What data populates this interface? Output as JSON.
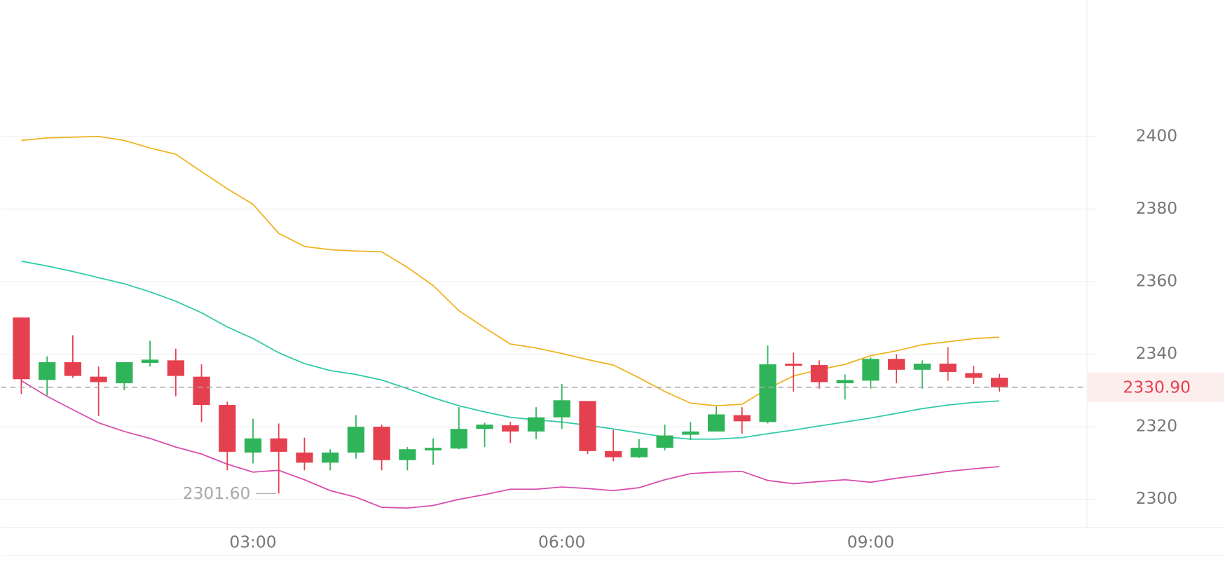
{
  "chart_data": {
    "type": "candlestick",
    "x": [
      0.75,
      1,
      1.25,
      1.5,
      1.75,
      2,
      2.25,
      2.5,
      2.75,
      3,
      3.25,
      3.5,
      3.75,
      4,
      4.25,
      4.5,
      4.75,
      5,
      5.25,
      5.5,
      5.75,
      6,
      6.25,
      6.5,
      6.75,
      7,
      7.25,
      7.5,
      7.75,
      8,
      8.25,
      8.5,
      8.75,
      9,
      9.25,
      9.5,
      9.75,
      10,
      10.25
    ],
    "open": [
      2350.1,
      2332.9,
      2337.8,
      2333.8,
      2332.0,
      2337.6,
      2338.3,
      2333.8,
      2326.0,
      2312.9,
      2316.8,
      2312.9,
      2310.1,
      2312.9,
      2320.0,
      2310.8,
      2313.5,
      2314.0,
      2319.4,
      2320.4,
      2318.7,
      2322.6,
      2327.1,
      2313.3,
      2311.6,
      2314.2,
      2317.8,
      2318.7,
      2323.2,
      2321.3,
      2337.4,
      2337.0,
      2332.0,
      2332.7,
      2338.7,
      2335.7,
      2337.4,
      2334.8,
      2333.5
    ],
    "high": [
      2350.1,
      2339.4,
      2345.2,
      2336.6,
      2337.8,
      2343.7,
      2341.5,
      2337.2,
      2326.9,
      2322.2,
      2320.9,
      2317.0,
      2313.8,
      2323.2,
      2320.6,
      2314.4,
      2316.8,
      2325.4,
      2321.1,
      2321.3,
      2325.4,
      2331.8,
      2327.1,
      2319.1,
      2316.6,
      2320.6,
      2321.3,
      2325.6,
      2325.4,
      2342.4,
      2340.4,
      2338.3,
      2334.4,
      2339.1,
      2340.0,
      2338.3,
      2341.9,
      2336.8,
      2334.6
    ],
    "low": [
      2329.0,
      2328.6,
      2333.5,
      2323.0,
      2330.1,
      2336.6,
      2328.4,
      2321.3,
      2308.0,
      2309.9,
      2301.6,
      2308.0,
      2308.0,
      2311.2,
      2308.0,
      2308.0,
      2309.5,
      2313.8,
      2314.4,
      2315.5,
      2316.6,
      2319.4,
      2312.5,
      2310.5,
      2311.4,
      2313.5,
      2316.3,
      2318.7,
      2318.1,
      2320.9,
      2329.7,
      2330.5,
      2327.5,
      2330.5,
      2332.0,
      2330.5,
      2332.7,
      2331.8,
      2329.7
    ],
    "close": [
      2333.1,
      2337.8,
      2334.0,
      2332.3,
      2337.8,
      2338.5,
      2334.0,
      2326.0,
      2313.1,
      2316.8,
      2313.1,
      2310.1,
      2312.9,
      2320.0,
      2310.8,
      2313.8,
      2314.2,
      2319.4,
      2320.6,
      2318.7,
      2322.6,
      2327.3,
      2313.3,
      2311.6,
      2314.2,
      2317.6,
      2318.7,
      2323.4,
      2321.5,
      2337.2,
      2336.8,
      2332.3,
      2332.9,
      2338.7,
      2335.7,
      2337.4,
      2335.1,
      2333.5,
      2330.9
    ],
    "up_color": "#2fb45a",
    "down_color": "#e5404f",
    "lines": [
      {
        "color": "#f0b323",
        "values": [
          2398.9,
          2399.6,
          2399.8,
          2400.0,
          2398.9,
          2396.8,
          2395.1,
          2390.3,
          2385.6,
          2381.3,
          2373.3,
          2369.7,
          2368.8,
          2368.4,
          2368.2,
          2363.9,
          2358.9,
          2352.0,
          2347.3,
          2342.8,
          2341.7,
          2340.2,
          2338.5,
          2337.0,
          2333.5,
          2329.7,
          2326.5,
          2325.8,
          2326.2,
          2330.5,
          2334.0,
          2335.7,
          2337.2,
          2339.6,
          2340.9,
          2342.6,
          2343.4,
          2344.3,
          2344.7
        ]
      },
      {
        "color": "#2fcaa8",
        "values": [
          2365.6,
          2364.3,
          2362.8,
          2361.1,
          2359.4,
          2357.2,
          2354.6,
          2351.4,
          2347.5,
          2344.3,
          2340.4,
          2337.4,
          2335.5,
          2334.4,
          2332.9,
          2330.5,
          2328.0,
          2325.8,
          2324.1,
          2322.6,
          2321.9,
          2321.3,
          2320.4,
          2319.4,
          2318.3,
          2317.2,
          2316.6,
          2316.6,
          2317.0,
          2318.1,
          2319.1,
          2320.2,
          2321.3,
          2322.4,
          2323.7,
          2325.0,
          2326.0,
          2326.7,
          2327.1
        ]
      },
      {
        "color": "#d94cae",
        "values": [
          2332.7,
          2328.4,
          2324.7,
          2321.1,
          2318.7,
          2316.8,
          2314.4,
          2312.5,
          2309.7,
          2307.5,
          2308.0,
          2305.4,
          2302.4,
          2300.6,
          2297.8,
          2297.6,
          2298.3,
          2300.0,
          2301.3,
          2302.8,
          2302.8,
          2303.4,
          2303.0,
          2302.4,
          2303.2,
          2305.4,
          2307.1,
          2307.5,
          2307.7,
          2305.2,
          2304.3,
          2304.9,
          2305.4,
          2304.7,
          2305.8,
          2306.7,
          2307.7,
          2308.4,
          2309.0
        ]
      }
    ],
    "last_price": {
      "value": 2330.9,
      "label": "2330.90"
    },
    "low_annotation": {
      "value": 2301.6,
      "label": "2301.60"
    },
    "xlim": [
      0.55,
      11.1
    ],
    "xticks": [
      {
        "value": 3,
        "label": "03:00"
      },
      {
        "value": 6,
        "label": "06:00"
      },
      {
        "value": 9,
        "label": "09:00"
      }
    ],
    "ylim": [
      2292.5,
      2437.6
    ],
    "yticks": [
      2300,
      2320,
      2340,
      2360,
      2380,
      2400
    ],
    "grid": true
  }
}
